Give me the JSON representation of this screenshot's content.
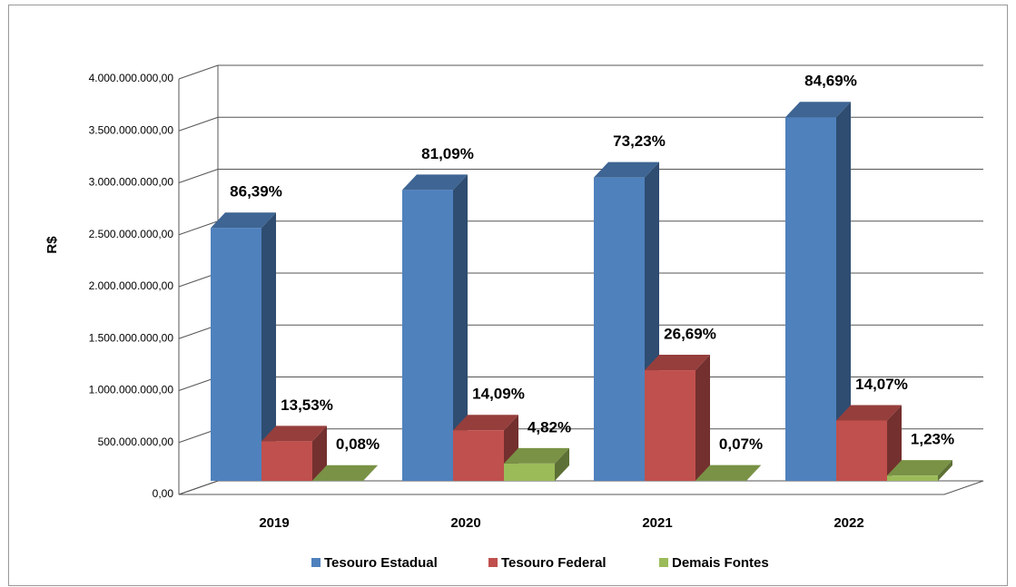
{
  "chart_data": {
    "type": "bar3d",
    "y_label": "R$",
    "categories": [
      "2019",
      "2020",
      "2021",
      "2022"
    ],
    "series": [
      {
        "name": "Tesouro Estadual",
        "color": "#4f81bd",
        "values": [
          2435000000,
          2800000000,
          2920000000,
          3500000000
        ],
        "percent_labels": [
          "86,39%",
          "81,09%",
          "73,23%",
          "84,69%"
        ]
      },
      {
        "name": "Tesouro Federal",
        "color": "#c0504d",
        "values": [
          381000000,
          487000000,
          1065000000,
          581000000
        ],
        "percent_labels": [
          "13,53%",
          "14,09%",
          "26,69%",
          "14,07%"
        ]
      },
      {
        "name": "Demais Fontes",
        "color": "#9bbb59",
        "values": [
          2300000,
          166500000,
          2800000,
          50800000
        ],
        "percent_labels": [
          "0,08%",
          "4,82%",
          "0,07%",
          "1,23%"
        ]
      }
    ],
    "ylim": [
      0,
      4000000000
    ],
    "yticks": [
      {
        "value": 0,
        "label": "0,00"
      },
      {
        "value": 500000000,
        "label": "500.000.000,00"
      },
      {
        "value": 1000000000,
        "label": "1.000.000.000,00"
      },
      {
        "value": 1500000000,
        "label": "1.500.000.000,00"
      },
      {
        "value": 2000000000,
        "label": "2.000.000.000,00"
      },
      {
        "value": 2500000000,
        "label": "2.500.000.000,00"
      },
      {
        "value": 3000000000,
        "label": "3.000.000.000,00"
      },
      {
        "value": 3500000000,
        "label": "3.500.000.000,00"
      },
      {
        "value": 4000000000,
        "label": "4.000.000.000,00"
      }
    ],
    "grid": true
  }
}
